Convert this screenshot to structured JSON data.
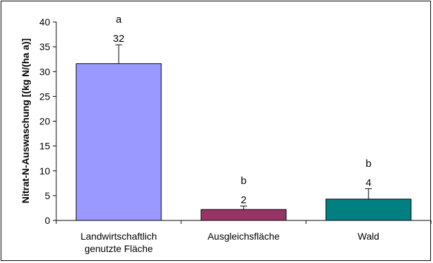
{
  "chart_data": {
    "type": "bar",
    "categories": [
      [
        "Landwirtschaftlich",
        "genutzte Fläche"
      ],
      [
        "Ausgleichsfläche"
      ],
      [
        "Wald"
      ]
    ],
    "values": [
      31.6,
      2.2,
      4.3
    ],
    "error_plus": [
      3.8,
      0.7,
      2.1
    ],
    "data_labels": [
      "32",
      "2",
      "4"
    ],
    "significance_letters": [
      "a",
      "b",
      "b"
    ],
    "bar_colors": [
      "#9999ff",
      "#993366",
      "#008080"
    ],
    "ylabel": "Nitrat-N-Auswaschung [(kg N/(ha a)]",
    "ylim": [
      0,
      40
    ],
    "yticks": [
      0,
      5,
      10,
      15,
      20,
      25,
      30,
      35,
      40
    ],
    "grid": false,
    "legend": "none"
  }
}
